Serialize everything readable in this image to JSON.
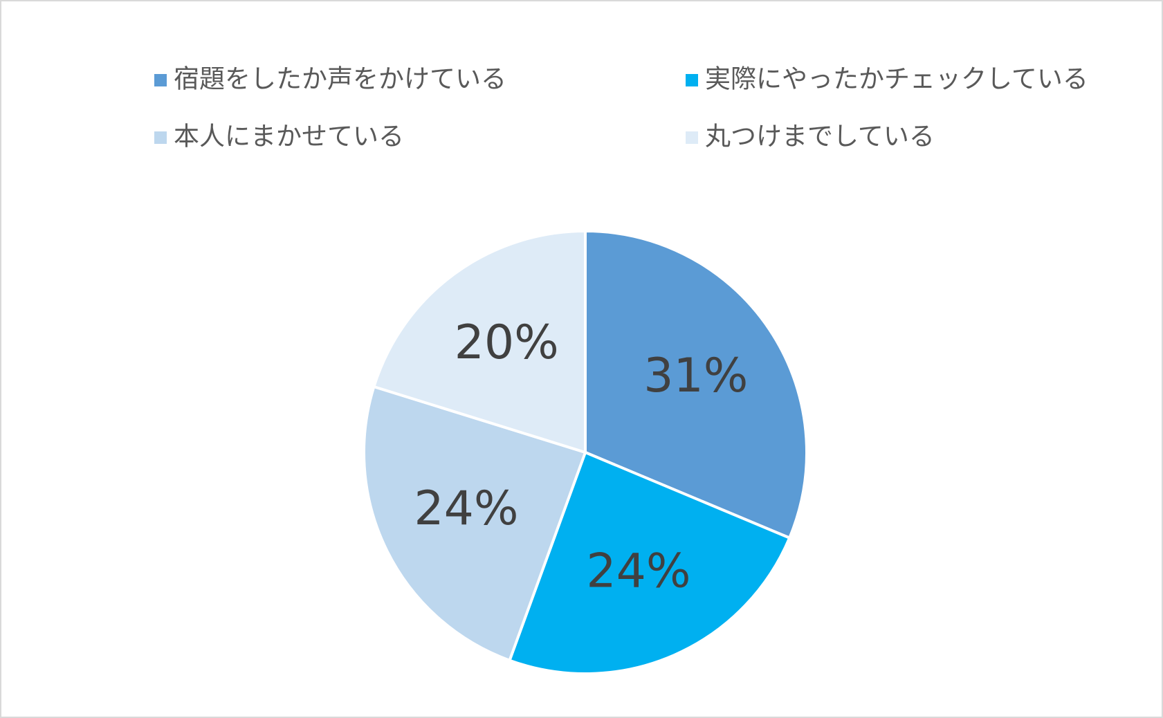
{
  "chart_data": {
    "type": "pie",
    "categories": [
      "宿題をしたか声をかけている",
      "実際にやったかチェックしている",
      "本人にまかせている",
      "丸つけまでしている"
    ],
    "values": [
      31,
      24,
      24,
      20
    ],
    "value_labels": [
      "31%",
      "24%",
      "24%",
      "20%"
    ],
    "colors": [
      "#5b9bd5",
      "#00b0f0",
      "#bdd7ee",
      "#deebf7"
    ],
    "legend": "top"
  }
}
